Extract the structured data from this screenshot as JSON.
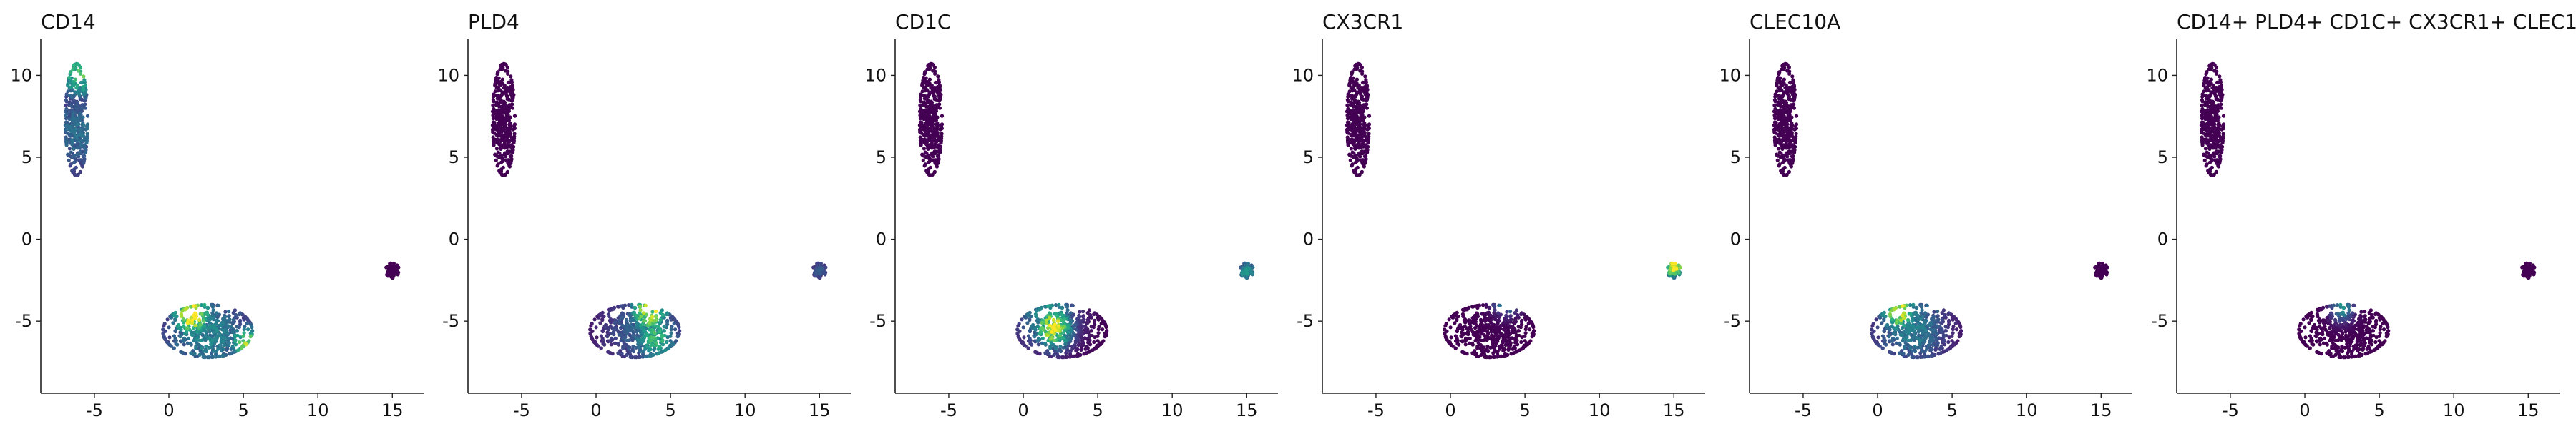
{
  "figure": {
    "description_free": true
  },
  "chart_data": [
    {
      "type": "scatter",
      "title": "CD14",
      "xlabel": "",
      "ylabel": "",
      "xlim": [
        -8.6,
        17.1
      ],
      "ylim": [
        -9.4,
        12.2
      ],
      "xticks": [
        -5,
        0,
        5,
        10,
        15
      ],
      "xtick_labels": [
        "-5",
        "0",
        "5",
        "10",
        "15"
      ],
      "yticks": [
        -5,
        0,
        5,
        10
      ],
      "ytick_labels": [
        "-5",
        "0",
        "5",
        "10"
      ],
      "colormap": "viridis",
      "grid": false,
      "legend": "none",
      "clusters": [
        {
          "name": "upper",
          "center": [
            -6.2,
            7.3
          ],
          "spread": [
            0.75,
            3.4
          ],
          "n": 380
        },
        {
          "name": "lower",
          "center": [
            2.6,
            -5.6
          ],
          "spread": [
            3.0,
            1.6
          ],
          "n": 520
        },
        {
          "name": "right",
          "center": [
            15.0,
            -1.9
          ],
          "spread": [
            0.45,
            0.45
          ],
          "n": 80
        }
      ],
      "hotspots": [
        {
          "center": [
            -6.0,
            10.0
          ],
          "radius": 1.5,
          "value": 0.65
        },
        {
          "center": [
            -6.1,
            6.5
          ],
          "radius": 3.2,
          "value": 0.32
        },
        {
          "center": [
            1.5,
            -4.6
          ],
          "radius": 1.3,
          "value": 1.0
        },
        {
          "center": [
            5.2,
            -6.3
          ],
          "radius": 1.1,
          "value": 0.78
        },
        {
          "center": [
            2.8,
            -8.0
          ],
          "radius": 1.0,
          "value": 0.7
        },
        {
          "center": [
            2.5,
            -5.8
          ],
          "radius": 3.2,
          "value": 0.42
        }
      ]
    },
    {
      "type": "scatter",
      "title": "PLD4",
      "xlabel": "",
      "ylabel": "",
      "xlim": [
        -8.6,
        17.1
      ],
      "ylim": [
        -9.4,
        12.2
      ],
      "xticks": [
        -5,
        0,
        5,
        10,
        15
      ],
      "xtick_labels": [
        "-5",
        "0",
        "5",
        "10",
        "15"
      ],
      "yticks": [
        -5,
        0,
        5,
        10
      ],
      "ytick_labels": [
        "-5",
        "0",
        "5",
        "10"
      ],
      "colormap": "viridis",
      "grid": false,
      "legend": "none",
      "clusters": [
        {
          "name": "upper",
          "center": [
            -6.2,
            7.3
          ],
          "spread": [
            0.75,
            3.4
          ],
          "n": 380
        },
        {
          "name": "lower",
          "center": [
            2.6,
            -5.6
          ],
          "spread": [
            3.0,
            1.6
          ],
          "n": 520
        },
        {
          "name": "right",
          "center": [
            15.0,
            -1.9
          ],
          "spread": [
            0.45,
            0.45
          ],
          "n": 80
        }
      ],
      "hotspots": [
        {
          "center": [
            3.6,
            -4.4
          ],
          "radius": 1.3,
          "value": 0.9
        },
        {
          "center": [
            4.0,
            -6.0
          ],
          "radius": 1.6,
          "value": 0.6
        },
        {
          "center": [
            3.0,
            -5.5
          ],
          "radius": 2.8,
          "value": 0.3
        },
        {
          "center": [
            15.0,
            -1.9
          ],
          "radius": 0.8,
          "value": 0.25
        }
      ]
    },
    {
      "type": "scatter",
      "title": "CD1C",
      "xlabel": "",
      "ylabel": "",
      "xlim": [
        -8.6,
        17.1
      ],
      "ylim": [
        -9.4,
        12.2
      ],
      "xticks": [
        -5,
        0,
        5,
        10,
        15
      ],
      "xtick_labels": [
        "-5",
        "0",
        "5",
        "10",
        "15"
      ],
      "yticks": [
        -5,
        0,
        5,
        10
      ],
      "ytick_labels": [
        "-5",
        "0",
        "5",
        "10"
      ],
      "colormap": "viridis",
      "grid": false,
      "legend": "none",
      "clusters": [
        {
          "name": "upper",
          "center": [
            -6.2,
            7.3
          ],
          "spread": [
            0.75,
            3.4
          ],
          "n": 380
        },
        {
          "name": "lower",
          "center": [
            2.6,
            -5.6
          ],
          "spread": [
            3.0,
            1.6
          ],
          "n": 520
        },
        {
          "name": "right",
          "center": [
            15.0,
            -1.9
          ],
          "spread": [
            0.45,
            0.45
          ],
          "n": 80
        }
      ],
      "hotspots": [
        {
          "center": [
            2.0,
            -5.4
          ],
          "radius": 1.3,
          "value": 0.9
        },
        {
          "center": [
            1.6,
            -4.6
          ],
          "radius": 2.0,
          "value": 0.5
        },
        {
          "center": [
            15.0,
            -2.0
          ],
          "radius": 0.9,
          "value": 0.45
        }
      ]
    },
    {
      "type": "scatter",
      "title": "CX3CR1",
      "xlabel": "",
      "ylabel": "",
      "xlim": [
        -8.6,
        17.1
      ],
      "ylim": [
        -9.4,
        12.2
      ],
      "xticks": [
        -5,
        0,
        5,
        10,
        15
      ],
      "xtick_labels": [
        "-5",
        "0",
        "5",
        "10",
        "15"
      ],
      "yticks": [
        -5,
        0,
        5,
        10
      ],
      "ytick_labels": [
        "-5",
        "0",
        "5",
        "10"
      ],
      "colormap": "viridis",
      "grid": false,
      "legend": "none",
      "clusters": [
        {
          "name": "upper",
          "center": [
            -6.2,
            7.3
          ],
          "spread": [
            0.75,
            3.4
          ],
          "n": 380
        },
        {
          "name": "lower",
          "center": [
            2.6,
            -5.6
          ],
          "spread": [
            3.0,
            1.6
          ],
          "n": 520
        },
        {
          "name": "right",
          "center": [
            15.0,
            -1.9
          ],
          "spread": [
            0.45,
            0.45
          ],
          "n": 80
        }
      ],
      "hotspots": [
        {
          "center": [
            15.0,
            -1.5
          ],
          "radius": 0.9,
          "value": 0.95
        },
        {
          "center": [
            3.8,
            -3.6
          ],
          "radius": 0.9,
          "value": 0.55
        }
      ]
    },
    {
      "type": "scatter",
      "title": "CLEC10A",
      "xlabel": "",
      "ylabel": "",
      "xlim": [
        -8.6,
        17.1
      ],
      "ylim": [
        -9.4,
        12.2
      ],
      "xticks": [
        -5,
        0,
        5,
        10,
        15
      ],
      "xtick_labels": [
        "-5",
        "0",
        "5",
        "10",
        "15"
      ],
      "yticks": [
        -5,
        0,
        5,
        10
      ],
      "ytick_labels": [
        "-5",
        "0",
        "5",
        "10"
      ],
      "colormap": "viridis",
      "grid": false,
      "legend": "none",
      "clusters": [
        {
          "name": "upper",
          "center": [
            -6.2,
            7.3
          ],
          "spread": [
            0.75,
            3.4
          ],
          "n": 380
        },
        {
          "name": "lower",
          "center": [
            2.6,
            -5.6
          ],
          "spread": [
            3.0,
            1.6
          ],
          "n": 520
        },
        {
          "name": "right",
          "center": [
            15.0,
            -1.9
          ],
          "spread": [
            0.45,
            0.45
          ],
          "n": 80
        }
      ],
      "hotspots": [
        {
          "center": [
            1.4,
            -4.4
          ],
          "radius": 1.2,
          "value": 0.9
        },
        {
          "center": [
            2.2,
            -5.4
          ],
          "radius": 2.6,
          "value": 0.4
        },
        {
          "center": [
            3.5,
            -4.0
          ],
          "radius": 1.4,
          "value": 0.3
        }
      ]
    },
    {
      "type": "scatter",
      "title": "CD14+ PLD4+ CD1C+ CX3CR1+ CLEC1",
      "xlabel": "",
      "ylabel": "",
      "xlim": [
        -8.6,
        17.1
      ],
      "ylim": [
        -9.4,
        12.2
      ],
      "xticks": [
        -5,
        0,
        5,
        10,
        15
      ],
      "xtick_labels": [
        "-5",
        "0",
        "5",
        "10",
        "15"
      ],
      "yticks": [
        -5,
        0,
        5,
        10
      ],
      "ytick_labels": [
        "-5",
        "0",
        "5",
        "10"
      ],
      "colormap": "viridis",
      "grid": false,
      "legend": "none",
      "clusters": [
        {
          "name": "upper",
          "center": [
            -6.2,
            7.3
          ],
          "spread": [
            0.75,
            3.4
          ],
          "n": 380
        },
        {
          "name": "lower",
          "center": [
            2.6,
            -5.6
          ],
          "spread": [
            3.0,
            1.6
          ],
          "n": 520
        },
        {
          "name": "right",
          "center": [
            15.0,
            -1.9
          ],
          "spread": [
            0.45,
            0.45
          ],
          "n": 80
        }
      ],
      "hotspots": [
        {
          "center": [
            2.5,
            -4.2
          ],
          "radius": 0.8,
          "value": 0.45
        }
      ]
    }
  ]
}
